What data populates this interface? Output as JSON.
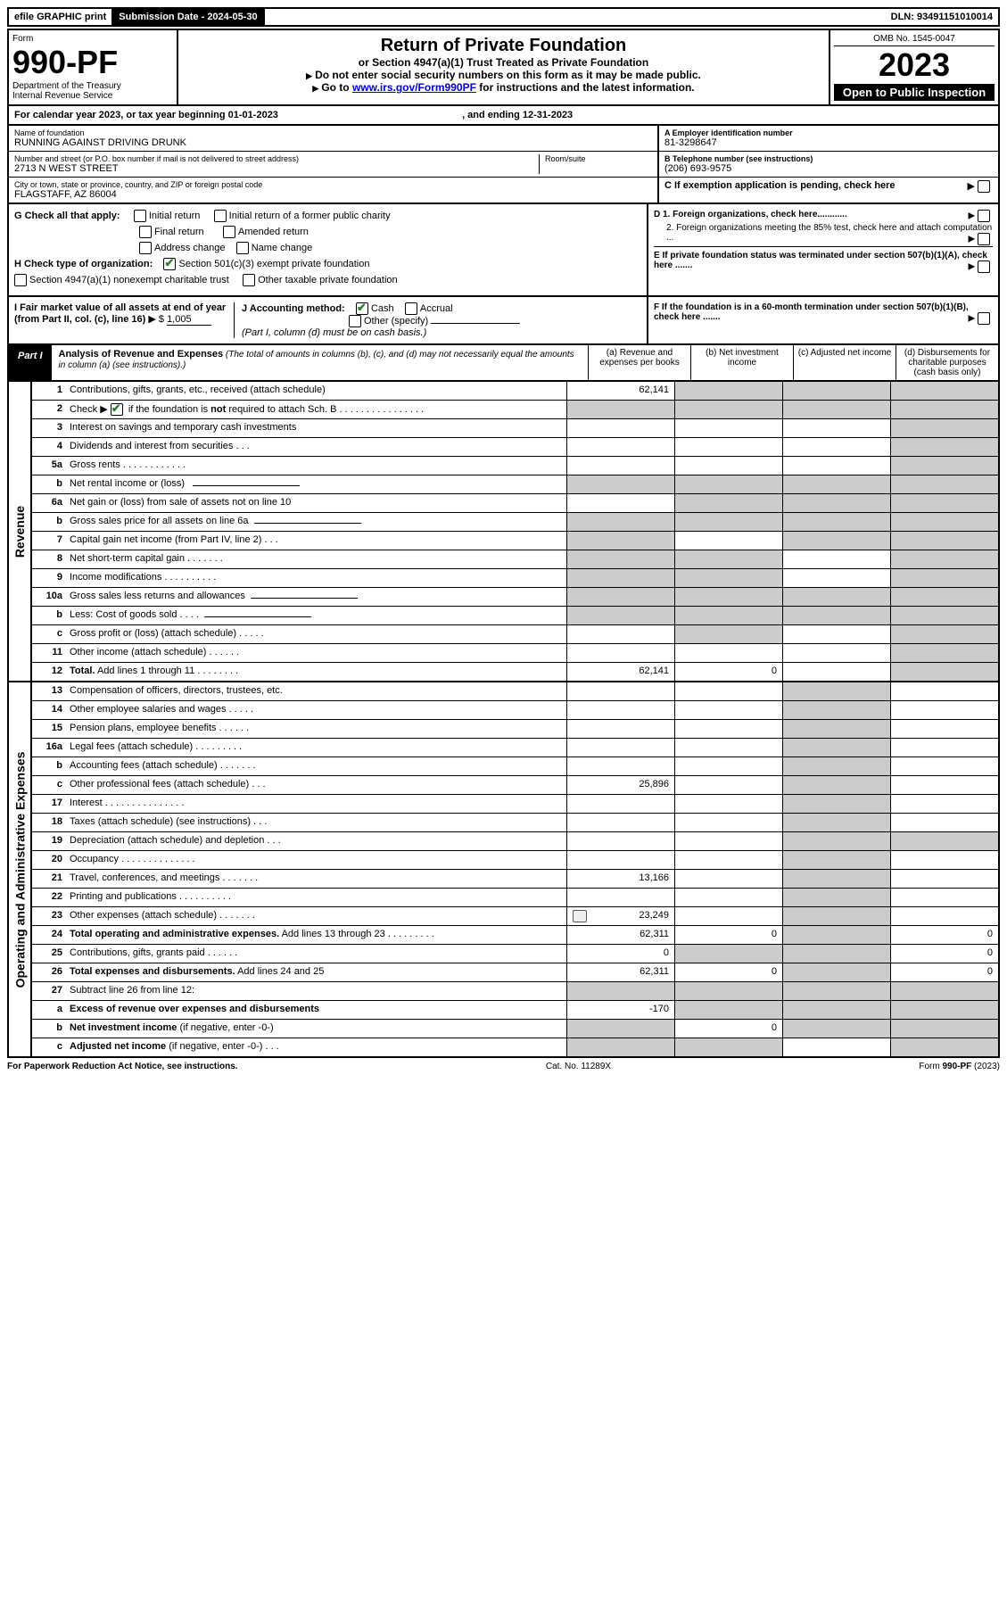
{
  "top_bar": {
    "efile": "efile GRAPHIC print",
    "submission": "Submission Date - 2024-05-30",
    "dln": "DLN: 93491151010014"
  },
  "header": {
    "form_word": "Form",
    "form_number": "990-PF",
    "dept1": "Department of the Treasury",
    "dept2": "Internal Revenue Service",
    "title": "Return of Private Foundation",
    "subtitle": "or Section 4947(a)(1) Trust Treated as Private Foundation",
    "note1": "Do not enter social security numbers on this form as it may be made public.",
    "note2_pre": "Go to ",
    "note2_link": "www.irs.gov/Form990PF",
    "note2_post": " for instructions and the latest information.",
    "omb": "OMB No. 1545-0047",
    "year": "2023",
    "open": "Open to Public Inspection"
  },
  "cal_year": {
    "text_pre": "For calendar year 2023, or tax year beginning ",
    "begin": "01-01-2023",
    "text_mid": " , and ending ",
    "end": "12-31-2023"
  },
  "info": {
    "name_label": "Name of foundation",
    "name": "RUNNING AGAINST DRIVING DRUNK",
    "addr_label": "Number and street (or P.O. box number if mail is not delivered to street address)",
    "addr": "2713 N WEST STREET",
    "room_label": "Room/suite",
    "city_label": "City or town, state or province, country, and ZIP or foreign postal code",
    "city": "FLAGSTAFF, AZ  86004",
    "a_label": "A Employer identification number",
    "a_val": "81-3298647",
    "b_label": "B Telephone number (see instructions)",
    "b_val": "(206) 693-9575",
    "c_label": "C If exemption application is pending, check here"
  },
  "checks": {
    "g_label": "G Check all that apply:",
    "g_opts": [
      "Initial return",
      "Initial return of a former public charity",
      "Final return",
      "Amended return",
      "Address change",
      "Name change"
    ],
    "h_label": "H Check type of organization:",
    "h1": "Section 501(c)(3) exempt private foundation",
    "h2": "Section 4947(a)(1) nonexempt charitable trust",
    "h3": "Other taxable private foundation",
    "d1": "D 1. Foreign organizations, check here............",
    "d2": "2. Foreign organizations meeting the 85% test, check here and attach computation ...",
    "e": "E  If private foundation status was terminated under section 507(b)(1)(A), check here .......",
    "i_label": "I Fair market value of all assets at end of year (from Part II, col. (c), line 16)",
    "i_val": "1,005",
    "j_label": "J Accounting method:",
    "j_cash": "Cash",
    "j_accrual": "Accrual",
    "j_other": "Other (specify)",
    "j_note": "(Part I, column (d) must be on cash basis.)",
    "f": "F  If the foundation is in a 60-month termination under section 507(b)(1)(B), check here ......."
  },
  "part1": {
    "label": "Part I",
    "title": "Analysis of Revenue and Expenses",
    "title_note": " (The total of amounts in columns (b), (c), and (d) may not necessarily equal the amounts in column (a) (see instructions).)",
    "col_a": "(a)  Revenue and expenses per books",
    "col_b": "(b)  Net investment income",
    "col_c": "(c)  Adjusted net income",
    "col_d": "(d)  Disbursements for charitable purposes (cash basis only)"
  },
  "side_labels": {
    "revenue": "Revenue",
    "expenses": "Operating and Administrative Expenses"
  },
  "rows": [
    {
      "n": "1",
      "d": "Contributions, gifts, grants, etc., received (attach schedule)",
      "a": "62,141",
      "grey": [
        "b",
        "c",
        "d"
      ]
    },
    {
      "n": "2",
      "d_html": "Check ▶ [X] if the foundation is <b>not</b> required to attach Sch. B   .  .  .  .  .  .  .  .  .  .  .  .  .  .  .  .",
      "grey": [
        "a",
        "b",
        "c",
        "d"
      ]
    },
    {
      "n": "3",
      "d": "Interest on savings and temporary cash investments",
      "grey": [
        "d"
      ]
    },
    {
      "n": "4",
      "d": "Dividends and interest from securities   .  .  .",
      "grey": [
        "d"
      ]
    },
    {
      "n": "5a",
      "d": "Gross rents   .  .  .  .  .  .  .  .  .  .  .  .",
      "grey": [
        "d"
      ]
    },
    {
      "n": "b",
      "d": "Net rental income or (loss)  ",
      "grey": [
        "a",
        "b",
        "c",
        "d"
      ],
      "input_after": true
    },
    {
      "n": "6a",
      "d": "Net gain or (loss) from sale of assets not on line 10",
      "grey": [
        "b",
        "c",
        "d"
      ]
    },
    {
      "n": "b",
      "d": "Gross sales price for all assets on line 6a",
      "grey": [
        "a",
        "b",
        "c",
        "d"
      ],
      "input_after": true
    },
    {
      "n": "7",
      "d": "Capital gain net income (from Part IV, line 2)  .  .  .",
      "grey": [
        "a",
        "c",
        "d"
      ]
    },
    {
      "n": "8",
      "d": "Net short-term capital gain   .  .  .  .  .  .  .",
      "grey": [
        "a",
        "b",
        "d"
      ]
    },
    {
      "n": "9",
      "d": "Income modifications .  .  .  .  .  .  .  .  .  .",
      "grey": [
        "a",
        "b",
        "d"
      ]
    },
    {
      "n": "10a",
      "d": "Gross sales less returns and allowances",
      "grey": [
        "a",
        "b",
        "c",
        "d"
      ],
      "input_after": true
    },
    {
      "n": "b",
      "d": "Less: Cost of goods sold   .  .  .  .",
      "grey": [
        "a",
        "b",
        "c",
        "d"
      ],
      "input_after": true
    },
    {
      "n": "c",
      "d": "Gross profit or (loss) (attach schedule)   .  .  .  .  .",
      "grey": [
        "b",
        "d"
      ]
    },
    {
      "n": "11",
      "d": "Other income (attach schedule)   .  .  .  .  .  .",
      "grey": [
        "d"
      ]
    },
    {
      "n": "12",
      "d": "<b>Total.</b> Add lines 1 through 11   .  .  .  .  .  .  .  .",
      "a": "62,141",
      "b": "0",
      "grey": [
        "d"
      ]
    }
  ],
  "exp_rows": [
    {
      "n": "13",
      "d": "Compensation of officers, directors, trustees, etc.",
      "grey": [
        "c"
      ]
    },
    {
      "n": "14",
      "d": "Other employee salaries and wages   .  .  .  .  .",
      "grey": [
        "c"
      ]
    },
    {
      "n": "15",
      "d": "Pension plans, employee benefits   .  .  .  .  .  .",
      "grey": [
        "c"
      ]
    },
    {
      "n": "16a",
      "d": "Legal fees (attach schedule) .  .  .  .  .  .  .  .  .",
      "grey": [
        "c"
      ]
    },
    {
      "n": "b",
      "d": "Accounting fees (attach schedule)  .  .  .  .  .  .  .",
      "grey": [
        "c"
      ]
    },
    {
      "n": "c",
      "d": "Other professional fees (attach schedule)   .  .  .",
      "a": "25,896",
      "grey": [
        "c"
      ]
    },
    {
      "n": "17",
      "d": "Interest .  .  .  .  .  .  .  .  .  .  .  .  .  .  .",
      "grey": [
        "c"
      ]
    },
    {
      "n": "18",
      "d": "Taxes (attach schedule) (see instructions)   .  .  .",
      "grey": [
        "c"
      ]
    },
    {
      "n": "19",
      "d": "Depreciation (attach schedule) and depletion   .  .  .",
      "grey": [
        "c",
        "d"
      ]
    },
    {
      "n": "20",
      "d": "Occupancy .  .  .  .  .  .  .  .  .  .  .  .  .  .",
      "grey": [
        "c"
      ]
    },
    {
      "n": "21",
      "d": "Travel, conferences, and meetings .  .  .  .  .  .  .",
      "a": "13,166",
      "grey": [
        "c"
      ]
    },
    {
      "n": "22",
      "d": "Printing and publications .  .  .  .  .  .  .  .  .  .",
      "grey": [
        "c"
      ]
    },
    {
      "n": "23",
      "d": "Other expenses (attach schedule)  .  .  .  .  .  .  .",
      "a": "23,249",
      "grey": [
        "c"
      ],
      "icon": true
    },
    {
      "n": "24",
      "d": "<b>Total operating and administrative expenses.</b> Add lines 13 through 23   .  .  .  .  .  .  .  .  .",
      "a": "62,311",
      "b": "0",
      "d_v": "0",
      "grey": [
        "c"
      ]
    },
    {
      "n": "25",
      "d": "Contributions, gifts, grants paid   .  .  .  .  .  .",
      "a": "0",
      "d_v": "0",
      "grey": [
        "b",
        "c"
      ]
    },
    {
      "n": "26",
      "d": "<b>Total expenses and disbursements.</b> Add lines 24 and 25",
      "a": "62,311",
      "b": "0",
      "d_v": "0",
      "grey": [
        "c"
      ]
    },
    {
      "n": "27",
      "d": "Subtract line 26 from line 12:",
      "grey": [
        "a",
        "b",
        "c",
        "d"
      ]
    },
    {
      "n": "a",
      "d": "<b>Excess of revenue over expenses and disbursements</b>",
      "a": "-170",
      "grey": [
        "b",
        "c",
        "d"
      ]
    },
    {
      "n": "b",
      "d": "<b>Net investment income</b> (if negative, enter -0-)",
      "b": "0",
      "grey": [
        "a",
        "c",
        "d"
      ]
    },
    {
      "n": "c",
      "d": "<b>Adjusted net income</b> (if negative, enter -0-)  .  .  .",
      "grey": [
        "a",
        "b",
        "d"
      ]
    }
  ],
  "footer": {
    "left": "For Paperwork Reduction Act Notice, see instructions.",
    "mid": "Cat. No. 11289X",
    "right": "Form 990-PF (2023)"
  },
  "colors": {
    "grey_cell": "#cccccc",
    "link": "#0000cc",
    "check_green": "#2e7d32"
  }
}
